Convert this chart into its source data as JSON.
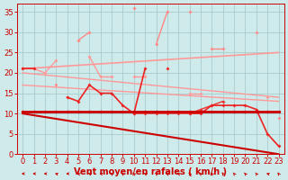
{
  "background_color": "#ceeaea",
  "grid_color": "#aacccc",
  "xlabel": "Vent moyen/en rafales ( km/h )",
  "xlabel_color": "#cc0000",
  "xlabel_fontsize": 7,
  "tick_color": "#cc0000",
  "tick_fontsize": 6,
  "yticks": [
    0,
    5,
    10,
    15,
    20,
    25,
    30,
    35
  ],
  "xticks": [
    0,
    1,
    2,
    3,
    4,
    5,
    6,
    7,
    8,
    9,
    10,
    11,
    12,
    13,
    14,
    15,
    16,
    17,
    18,
    19,
    20,
    21,
    22,
    23
  ],
  "xlim": [
    -0.5,
    23.5
  ],
  "ylim": [
    0,
    37
  ],
  "lines": [
    {
      "x": [
        0,
        1,
        2,
        3,
        4,
        5,
        6,
        7,
        8,
        9,
        10,
        11,
        12,
        13,
        14,
        15,
        16,
        17,
        18,
        19,
        20,
        21,
        22,
        23
      ],
      "y": [
        10.5,
        10.5,
        10.5,
        10.5,
        10.5,
        10.5,
        10.5,
        10.5,
        10.5,
        10.5,
        10.5,
        10.5,
        10.5,
        10.5,
        10.5,
        10.5,
        10.5,
        10.5,
        10.5,
        10.5,
        10.5,
        10.5,
        10.5,
        10.5
      ],
      "color": "#cc0000",
      "lw": 2.0,
      "marker": "D",
      "ms": 2.0,
      "zorder": 5,
      "linestyle": "-"
    },
    {
      "x": [
        0,
        23
      ],
      "y": [
        10,
        0
      ],
      "color": "#cc0000",
      "lw": 1.5,
      "marker": null,
      "ms": 0,
      "zorder": 3,
      "linestyle": "-"
    },
    {
      "x": [
        0,
        1,
        2,
        3,
        4,
        5,
        6,
        7,
        8,
        9,
        10,
        11,
        12,
        13,
        14,
        15,
        16,
        17,
        18,
        19,
        20,
        21,
        22,
        23
      ],
      "y": [
        21,
        21,
        null,
        null,
        14,
        13,
        17,
        15,
        15,
        12,
        10,
        21,
        null,
        21,
        null,
        10,
        10,
        12,
        12,
        12,
        12,
        11,
        5,
        2
      ],
      "color": "#ee2222",
      "lw": 1.2,
      "marker": "D",
      "ms": 2.0,
      "zorder": 4,
      "linestyle": "-"
    },
    {
      "x": [
        0,
        23
      ],
      "y": [
        21,
        25
      ],
      "color": "#ff9999",
      "lw": 1.2,
      "marker": null,
      "ms": 0,
      "zorder": 2,
      "linestyle": "-"
    },
    {
      "x": [
        0,
        23
      ],
      "y": [
        20,
        14
      ],
      "color": "#ff9999",
      "lw": 1.0,
      "marker": null,
      "ms": 0,
      "zorder": 2,
      "linestyle": "-"
    },
    {
      "x": [
        0,
        23
      ],
      "y": [
        17,
        13
      ],
      "color": "#ff9999",
      "lw": 1.0,
      "marker": null,
      "ms": 0,
      "zorder": 2,
      "linestyle": "-"
    },
    {
      "x": [
        0,
        1,
        2,
        3,
        4,
        5,
        6,
        7,
        8,
        9,
        10,
        11,
        12,
        13,
        14,
        15,
        16,
        17,
        18,
        19,
        20,
        21,
        22,
        23
      ],
      "y": [
        null,
        null,
        null,
        17,
        null,
        28,
        30,
        null,
        null,
        null,
        36,
        null,
        27,
        35,
        null,
        35,
        null,
        26,
        26,
        null,
        null,
        30,
        null,
        9
      ],
      "color": "#ff8888",
      "lw": 1.0,
      "marker": "D",
      "ms": 2.0,
      "zorder": 2,
      "linestyle": "-"
    },
    {
      "x": [
        0,
        1,
        2,
        3,
        4,
        5,
        6,
        7,
        8,
        9,
        10,
        11,
        12,
        13,
        14,
        15,
        16,
        17,
        18,
        19,
        20,
        21,
        22,
        23
      ],
      "y": [
        21,
        21,
        20,
        23,
        null,
        null,
        24,
        19,
        19,
        null,
        19,
        19,
        null,
        null,
        null,
        15,
        15,
        null,
        null,
        null,
        null,
        null,
        14,
        null
      ],
      "color": "#ff9999",
      "lw": 1.0,
      "marker": "D",
      "ms": 2.0,
      "zorder": 2,
      "linestyle": "-"
    },
    {
      "x": [
        0,
        1,
        2,
        3,
        4,
        5,
        6,
        7,
        8,
        9,
        10,
        11,
        12,
        13,
        14,
        15,
        16,
        17,
        18,
        19,
        20,
        21,
        22,
        23
      ],
      "y": [
        null,
        null,
        null,
        null,
        null,
        null,
        null,
        null,
        null,
        null,
        10,
        10,
        10,
        10,
        10,
        10,
        11,
        12,
        13,
        null,
        null,
        null,
        null,
        null
      ],
      "color": "#ee3333",
      "lw": 1.0,
      "marker": "D",
      "ms": 2.0,
      "zorder": 3,
      "linestyle": "-"
    }
  ]
}
